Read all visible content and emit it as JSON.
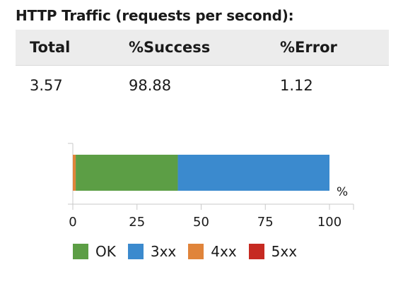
{
  "title": "HTTP Traffic (requests per second):",
  "table": {
    "headers": [
      "Total",
      "%Success",
      "%Error"
    ],
    "row": [
      "3.57",
      "98.88",
      "1.12"
    ]
  },
  "chart_data": {
    "type": "bar",
    "orientation": "horizontal",
    "stacked": true,
    "xunit": "%",
    "xlim": [
      0,
      100
    ],
    "xticks": [
      "0",
      "25",
      "50",
      "75",
      "100"
    ],
    "series": [
      {
        "name": "5xx",
        "value": 0.0,
        "color": "#c62a22"
      },
      {
        "name": "4xx",
        "value": 1.12,
        "color": "#e0843a"
      },
      {
        "name": "OK",
        "value": 39.8,
        "color": "#5c9e45"
      },
      {
        "name": "3xx",
        "value": 59.08,
        "color": "#3b8ace"
      }
    ],
    "legend": {
      "placement": "bottom",
      "items": [
        {
          "name": "OK",
          "color": "#5c9e45"
        },
        {
          "name": "3xx",
          "color": "#3b8ace"
        },
        {
          "name": "4xx",
          "color": "#e0843a"
        },
        {
          "name": "5xx",
          "color": "#c62a22"
        }
      ]
    }
  }
}
